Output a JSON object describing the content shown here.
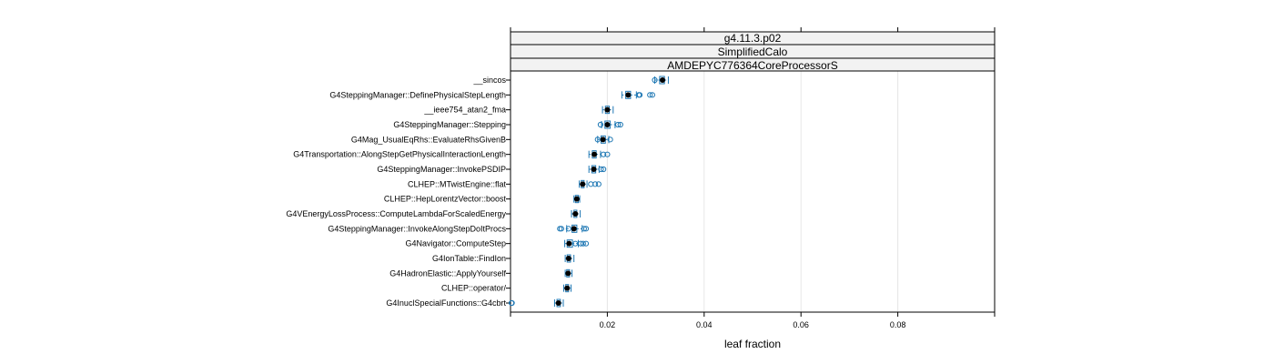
{
  "chart_data": {
    "type": "boxplot",
    "strips": [
      "g4.11.3.p02",
      "SimplifiedCalo",
      "AMDEPYC776364CoreProcessorS"
    ],
    "xlabel": "leaf fraction",
    "xlim": [
      0.0,
      0.1
    ],
    "xticks": [
      0.02,
      0.04,
      0.06,
      0.08
    ],
    "xtick_labels": [
      "0.02",
      "0.04",
      "0.06",
      "0.08"
    ],
    "grid": true,
    "colors": {
      "box": "#1f78b4",
      "median": "#000000",
      "grid": "#e6e6e6",
      "strip_bg": "#f2f2f2"
    },
    "categories": [
      "__sincos",
      "G4SteppingManager::DefinePhysicalStepLength",
      "__ieee754_atan2_fma",
      "G4SteppingManager::Stepping",
      "G4Mag_UsualEqRhs::EvaluateRhsGivenB",
      "G4Transportation::AlongStepGetPhysicalInteractionLength",
      "G4SteppingManager::InvokePSDIP",
      "CLHEP::MTwistEngine::flat",
      "CLHEP::HepLorentzVector::boost",
      "G4VEnergyLossProcess::ComputeLambdaForScaledEnergy",
      "G4SteppingManager::InvokeAlongStepDoItProcs",
      "G4Navigator::ComputeStep",
      "G4IonTable::FindIon",
      "G4HadronElastic::ApplyYourself",
      "CLHEP::operator/",
      "G4InuclSpecialFunctions::G4cbrt"
    ],
    "stats": [
      {
        "wlo": 0.0298,
        "q1": 0.0308,
        "med": 0.0314,
        "q3": 0.0318,
        "whi": 0.0326,
        "out": [
          0.0298
        ]
      },
      {
        "wlo": 0.023,
        "q1": 0.0238,
        "med": 0.0243,
        "q3": 0.0248,
        "whi": 0.026,
        "out": [
          0.0265,
          0.0267,
          0.0288,
          0.0293
        ]
      },
      {
        "wlo": 0.019,
        "q1": 0.0196,
        "med": 0.02,
        "q3": 0.0204,
        "whi": 0.0212,
        "out": []
      },
      {
        "wlo": 0.0188,
        "q1": 0.0195,
        "med": 0.02,
        "q3": 0.0206,
        "whi": 0.0216,
        "out": [
          0.0186,
          0.0222,
          0.0227
        ]
      },
      {
        "wlo": 0.018,
        "q1": 0.0187,
        "med": 0.0191,
        "q3": 0.0196,
        "whi": 0.0203,
        "out": [
          0.018,
          0.0206
        ]
      },
      {
        "wlo": 0.0162,
        "q1": 0.0169,
        "med": 0.0173,
        "q3": 0.0177,
        "whi": 0.0186,
        "out": [
          0.0192,
          0.02
        ]
      },
      {
        "wlo": 0.0162,
        "q1": 0.0168,
        "med": 0.0172,
        "q3": 0.0176,
        "whi": 0.0183,
        "out": [
          0.0187,
          0.0192
        ]
      },
      {
        "wlo": 0.0142,
        "q1": 0.0146,
        "med": 0.0149,
        "q3": 0.0152,
        "whi": 0.0158,
        "out": [
          0.0166,
          0.0175,
          0.0182
        ]
      },
      {
        "wlo": 0.0131,
        "q1": 0.0134,
        "med": 0.0137,
        "q3": 0.014,
        "whi": 0.0143,
        "out": []
      },
      {
        "wlo": 0.0126,
        "q1": 0.0131,
        "med": 0.0134,
        "q3": 0.0137,
        "whi": 0.0144,
        "out": []
      },
      {
        "wlo": 0.0116,
        "q1": 0.0127,
        "med": 0.0131,
        "q3": 0.0137,
        "whi": 0.0148,
        "out": [
          0.0102,
          0.0105,
          0.012,
          0.0152,
          0.0156
        ]
      },
      {
        "wlo": 0.0112,
        "q1": 0.0117,
        "med": 0.0121,
        "q3": 0.0128,
        "whi": 0.014,
        "out": [
          0.0134,
          0.0145,
          0.015,
          0.0156
        ]
      },
      {
        "wlo": 0.0113,
        "q1": 0.0117,
        "med": 0.012,
        "q3": 0.0124,
        "whi": 0.0131,
        "out": []
      },
      {
        "wlo": 0.0113,
        "q1": 0.0116,
        "med": 0.0119,
        "q3": 0.0122,
        "whi": 0.0127,
        "out": []
      },
      {
        "wlo": 0.011,
        "q1": 0.0114,
        "med": 0.0117,
        "q3": 0.012,
        "whi": 0.0125,
        "out": []
      },
      {
        "wlo": 0.0091,
        "q1": 0.0096,
        "med": 0.0099,
        "q3": 0.0103,
        "whi": 0.0109,
        "out": [
          0.0002,
          0.0003
        ]
      }
    ]
  }
}
